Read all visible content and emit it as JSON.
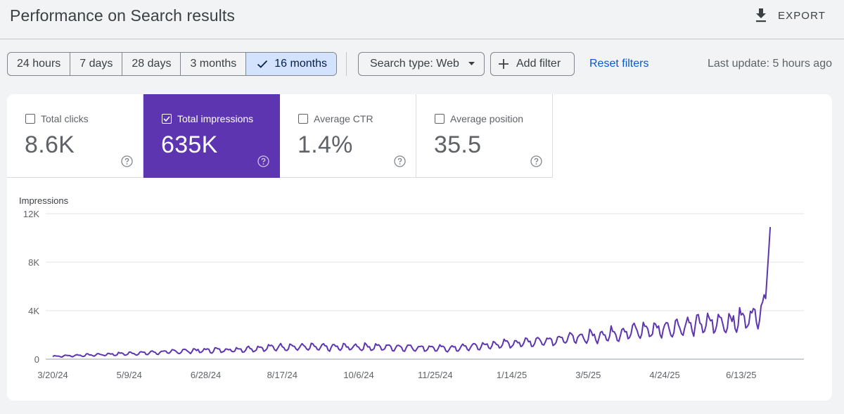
{
  "header": {
    "title": "Performance on Search results",
    "export_label": "EXPORT",
    "export_icon": "download-icon"
  },
  "toolbar": {
    "ranges": [
      "24 hours",
      "7 days",
      "28 days",
      "3 months",
      "16 months"
    ],
    "selected_range": "16 months",
    "search_type": "Search type: Web",
    "add_filter": "Add filter",
    "reset_filters": "Reset filters",
    "last_update": "Last update: 5 hours ago"
  },
  "metrics": [
    {
      "label": "Total clicks",
      "value": "8.6K",
      "checked": false
    },
    {
      "label": "Total impressions",
      "value": "635K",
      "checked": true
    },
    {
      "label": "Average CTR",
      "value": "1.4%",
      "checked": false
    },
    {
      "label": "Average position",
      "value": "35.5",
      "checked": false
    }
  ],
  "colors": {
    "accent": "#5e35b1",
    "line": "#5e35b1",
    "link": "#0b57d0",
    "selected_chip": "#d3e3fd"
  },
  "chart_data": {
    "type": "line",
    "ylabel": "Impressions",
    "y_ticks": [
      "0",
      "4K",
      "8K",
      "12K"
    ],
    "x_ticks": [
      "3/20/24",
      "5/9/24",
      "6/28/24",
      "8/17/24",
      "10/6/24",
      "11/25/24",
      "1/14/25",
      "3/5/25",
      "4/24/25",
      "6/13/25"
    ],
    "ylim": [
      0,
      12000
    ],
    "grid": true,
    "x_start": "2024-03-20",
    "x_end": "2025-07-24",
    "series": [
      {
        "values": [
          [
            0,
            250
          ],
          [
            30,
            400
          ],
          [
            60,
            550
          ],
          [
            90,
            750
          ],
          [
            120,
            850
          ],
          [
            150,
            1100
          ],
          [
            180,
            1050
          ],
          [
            200,
            1100
          ],
          [
            230,
            1050
          ],
          [
            260,
            950
          ],
          [
            290,
            1300
          ],
          [
            320,
            1650
          ],
          [
            350,
            2000
          ],
          [
            380,
            2500
          ],
          [
            400,
            2750
          ],
          [
            420,
            3050
          ],
          [
            440,
            3300
          ],
          [
            450,
            3500
          ],
          [
            458,
            3900
          ],
          [
            463,
            4200
          ],
          [
            466,
            5000
          ],
          [
            469,
            10900
          ]
        ]
      }
    ]
  }
}
